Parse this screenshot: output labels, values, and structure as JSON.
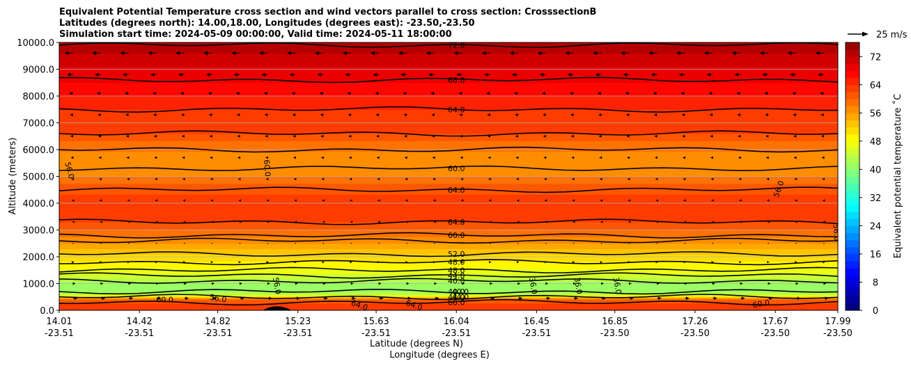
{
  "title_lines": [
    "Equivalent Potential Temperature cross section and wind vectors parallel to cross section: CrosssectionB",
    "Latitudes (degrees north): 14.00,18.00, Longitudes (degrees east): -23.50,-23.50",
    "Simulation start time: 2024-05-09 00:00:00, Valid time: 2024-05-11 18:00:00"
  ],
  "quiver_key": {
    "label": "25 m/s",
    "color": "#000000"
  },
  "chart_data": {
    "type": "heatmap",
    "xlabel": "Latitude (degrees N)",
    "xlabel2": "Longitude (degrees E)",
    "ylabel": "Altitude (meters)",
    "xlim": [
      14.01,
      17.99
    ],
    "ylim": [
      0,
      10000
    ],
    "x_ticks": [
      {
        "lat": "14.01",
        "lon": "-23.51"
      },
      {
        "lat": "14.42",
        "lon": "-23.51"
      },
      {
        "lat": "14.82",
        "lon": "-23.51"
      },
      {
        "lat": "15.23",
        "lon": "-23.51"
      },
      {
        "lat": "15.63",
        "lon": "-23.51"
      },
      {
        "lat": "16.04",
        "lon": "-23.51"
      },
      {
        "lat": "16.45",
        "lon": "-23.51"
      },
      {
        "lat": "16.85",
        "lon": "-23.50"
      },
      {
        "lat": "17.26",
        "lon": "-23.50"
      },
      {
        "lat": "17.67",
        "lon": "-23.50"
      },
      {
        "lat": "17.99",
        "lon": "-23.50"
      }
    ],
    "y_ticks": [
      "0.0",
      "1000.0",
      "2000.0",
      "3000.0",
      "4000.0",
      "5000.0",
      "6000.0",
      "7000.0",
      "8000.0",
      "9000.0",
      "10000.0"
    ],
    "grid": "horizontal",
    "colorbar": {
      "label": "Equivalent potential temperature ˚C",
      "range": [
        0,
        76
      ],
      "ticks": [
        "0",
        "8",
        "16",
        "24",
        "32",
        "40",
        "48",
        "56",
        "64",
        "72"
      ],
      "colormap": "jet"
    },
    "profile_levels": [
      {
        "alt": 0,
        "theta": 62
      },
      {
        "alt": 200,
        "theta": 63
      },
      {
        "alt": 400,
        "theta": 60
      },
      {
        "alt": 600,
        "theta": 44
      },
      {
        "alt": 800,
        "theta": 40
      },
      {
        "alt": 1000,
        "theta": 41
      },
      {
        "alt": 1300,
        "theta": 45
      },
      {
        "alt": 1700,
        "theta": 49
      },
      {
        "alt": 2100,
        "theta": 52
      },
      {
        "alt": 2500,
        "theta": 56
      },
      {
        "alt": 3000,
        "theta": 60
      },
      {
        "alt": 3600,
        "theta": 64
      },
      {
        "alt": 4200,
        "theta": 63
      },
      {
        "alt": 5000,
        "theta": 58
      },
      {
        "alt": 5800,
        "theta": 57
      },
      {
        "alt": 6600,
        "theta": 62
      },
      {
        "alt": 7500,
        "theta": 64
      },
      {
        "alt": 8500,
        "theta": 68
      },
      {
        "alt": 9400,
        "theta": 71
      },
      {
        "alt": 10000,
        "theta": 74
      }
    ],
    "contours": [
      {
        "alt": 9900,
        "label": "72.0"
      },
      {
        "alt": 8600,
        "label": "68.0"
      },
      {
        "alt": 7500,
        "label": "64.0"
      },
      {
        "alt": 6600,
        "label": ""
      },
      {
        "alt": 6000,
        "label": ""
      },
      {
        "alt": 5300,
        "label": "60.0"
      },
      {
        "alt": 4500,
        "label": "64.0"
      },
      {
        "alt": 3300,
        "label": "64.0"
      },
      {
        "alt": 2800,
        "label": "60.0"
      },
      {
        "alt": 2600,
        "label": ""
      },
      {
        "alt": 2100,
        "label": "52.0"
      },
      {
        "alt": 1800,
        "label": "48.0"
      },
      {
        "alt": 1500,
        "label": "48.0"
      },
      {
        "alt": 1300,
        "label": "44.0"
      },
      {
        "alt": 1100,
        "label": "40.0"
      },
      {
        "alt": 700,
        "label": "40.0"
      },
      {
        "alt": 500,
        "label": "44.0"
      },
      {
        "alt": 300,
        "label": "60.0"
      }
    ],
    "extra_contour_labels": [
      {
        "lat": 14.05,
        "alt": 5200,
        "label": "56.0",
        "rot": 75
      },
      {
        "lat": 15.06,
        "alt": 5300,
        "label": "60.0",
        "rot": 85
      },
      {
        "lat": 17.7,
        "alt": 4500,
        "label": "56.0",
        "rot": -70
      },
      {
        "lat": 17.97,
        "alt": 2900,
        "label": "56.0",
        "rot": 85
      },
      {
        "lat": 14.55,
        "alt": 300,
        "label": "60.0",
        "rot": 0
      },
      {
        "lat": 14.82,
        "alt": 350,
        "label": "56.0",
        "rot": 10
      },
      {
        "lat": 15.11,
        "alt": 900,
        "label": "56.0",
        "rot": 80
      },
      {
        "lat": 15.54,
        "alt": 100,
        "label": "64.0",
        "rot": 20
      },
      {
        "lat": 15.82,
        "alt": 100,
        "label": "64.0",
        "rot": 20
      },
      {
        "lat": 16.06,
        "alt": 600,
        "label": "40.0",
        "rot": 0
      },
      {
        "lat": 16.06,
        "alt": 400,
        "label": "44.0",
        "rot": 0
      },
      {
        "lat": 16.42,
        "alt": 900,
        "label": "36.0",
        "rot": 80
      },
      {
        "lat": 16.65,
        "alt": 900,
        "label": "36.0",
        "rot": 80
      },
      {
        "lat": 16.85,
        "alt": 900,
        "label": "36.0",
        "rot": 80
      },
      {
        "lat": 17.6,
        "alt": 150,
        "label": "60.0",
        "rot": -10
      },
      {
        "lat": 17.31,
        "alt": 7300,
        "label": "",
        "rot": 0
      }
    ],
    "vector_rows": [
      {
        "alt": 9600,
        "u": -1.0
      },
      {
        "alt": 8800,
        "u": -0.7
      },
      {
        "alt": 8100,
        "u": -0.45
      },
      {
        "alt": 7300,
        "u": -0.35
      },
      {
        "alt": 6500,
        "u": -0.3
      },
      {
        "alt": 5700,
        "u": -0.25
      },
      {
        "alt": 4900,
        "u": -0.2
      },
      {
        "alt": 4100,
        "u": -0.15
      },
      {
        "alt": 3300,
        "u": -0.1
      },
      {
        "alt": 2500,
        "u": 0.05
      },
      {
        "alt": 1800,
        "u": 0.1
      },
      {
        "alt": 1000,
        "u": 0.25
      },
      {
        "alt": 450,
        "u": 0.5
      }
    ]
  }
}
